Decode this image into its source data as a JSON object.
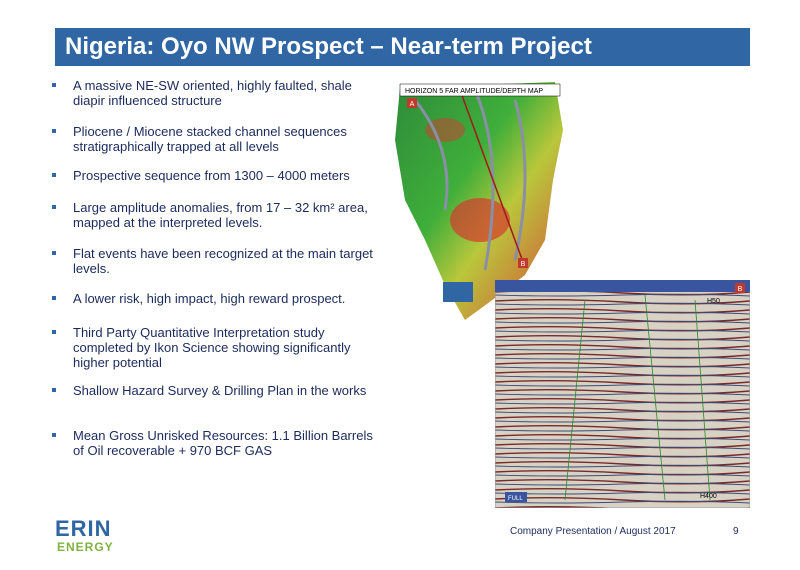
{
  "header": {
    "title": "Nigeria: Oyo NW Prospect – Near-term Project"
  },
  "bullets": [
    "A massive NE-SW oriented, highly faulted, shale diapir influenced structure",
    "Pliocene / Miocene stacked channel sequences stratigraphically trapped at all levels",
    "Prospective sequence from 1300 – 4000 meters",
    "Large amplitude anomalies, from 17 – 32 km² area,  mapped at the interpreted levels.",
    "Flat events have been recognized at the main target levels.",
    " A lower risk, high impact, high reward prospect.",
    "Third Party Quantitative Interpretation study completed by Ikon Science showing significantly higher potential",
    "Shallow Hazard Survey & Drilling Plan in the works",
    "Mean Gross Unrisked Resources: 1.1 Billion Barrels of Oil recoverable + 970 BCF GAS"
  ],
  "map": {
    "label": "HORIZON 5 FAR AMPLITUDE/DEPTH MAP",
    "point_a": "A",
    "point_b": "B"
  },
  "seismic": {
    "top_label": "H50",
    "bottom_label": "H400",
    "corner_label": "FULL",
    "point_b": "B"
  },
  "footer": {
    "text": "Company Presentation / August 2017",
    "page": "9"
  },
  "logo": {
    "line1": "ERIN",
    "line2": "ENERGY"
  }
}
